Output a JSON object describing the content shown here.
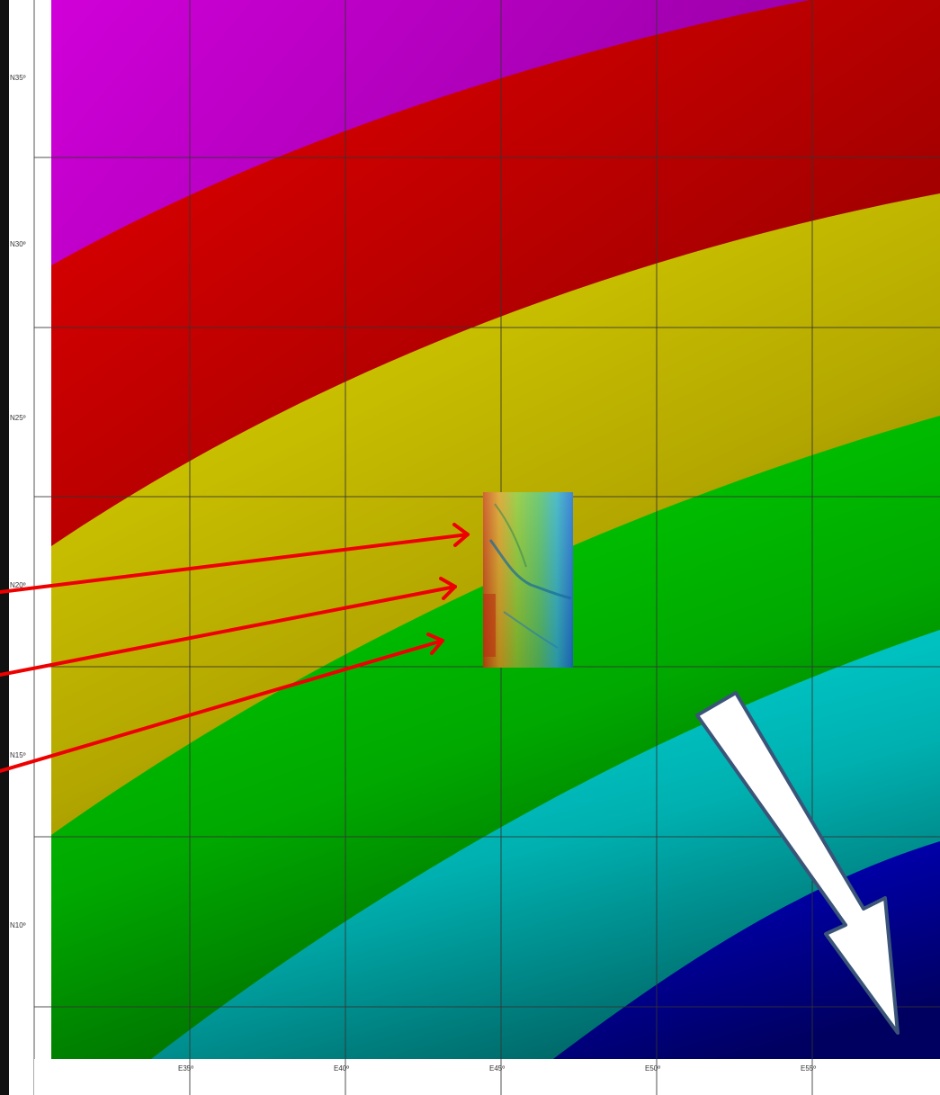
{
  "map": {
    "latitude_labels": [
      "N35º",
      "N30º",
      "N25º",
      "N20º",
      "N15º",
      "N10º"
    ],
    "longitude_labels": [
      "E35º",
      "E40º",
      "E45º",
      "E50º",
      "E55º"
    ],
    "bands": [
      {
        "name": "magenta",
        "color": "#b000c0"
      },
      {
        "name": "red",
        "color": "#c80000"
      },
      {
        "name": "yellow",
        "color": "#d6d000"
      },
      {
        "name": "green",
        "color": "#00c400"
      },
      {
        "name": "cyan",
        "color": "#00d0d0"
      },
      {
        "name": "blue",
        "color": "#0000b8"
      }
    ],
    "arrow_color": "#ee0000",
    "big_arrow_fill": "#ffffff",
    "big_arrow_stroke": "#3a5578"
  }
}
